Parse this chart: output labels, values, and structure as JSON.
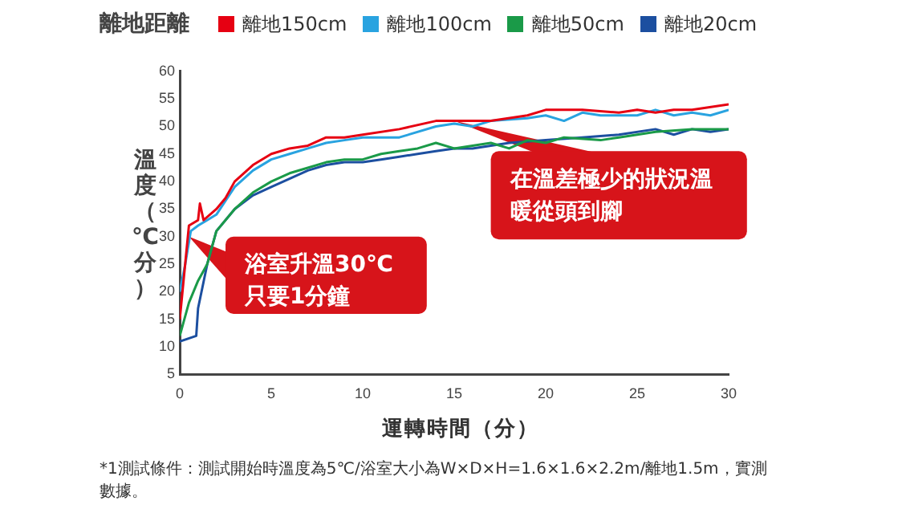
{
  "chart_data": {
    "type": "line",
    "legend_title": "離地距離",
    "legend": "top",
    "xlabel": "運轉時間（分）",
    "ylabel": "溫度（℃分）",
    "grid": false,
    "marker": "none",
    "line_style": "solid",
    "xlim": [
      0,
      30
    ],
    "xticks": [
      0,
      5,
      10,
      15,
      20,
      25,
      30
    ],
    "ylim": [
      5,
      60
    ],
    "yticks": [
      5,
      10,
      15,
      20,
      25,
      30,
      35,
      40,
      45,
      50,
      55,
      60
    ],
    "series": [
      {
        "name": "離地150cm",
        "color": "#e60012",
        "x": [
          0,
          0.5,
          1,
          1.1,
          1.3,
          2,
          2.5,
          3,
          4,
          5,
          6,
          7,
          8,
          9,
          10,
          12,
          14,
          15,
          17,
          19,
          20,
          22,
          24,
          25,
          26,
          27,
          28,
          30
        ],
        "values": [
          15,
          32,
          33,
          36,
          33,
          35,
          37,
          40,
          43,
          45,
          46,
          46.5,
          48,
          48,
          48.5,
          49.5,
          51,
          51,
          51,
          52,
          53,
          53,
          52.5,
          53,
          52.5,
          53,
          53,
          54
        ]
      },
      {
        "name": "離地100cm",
        "color": "#29a3e0",
        "x": [
          0,
          0.3,
          0.6,
          1,
          2,
          3,
          4,
          5,
          6,
          7,
          8,
          9,
          10,
          12,
          14,
          15,
          16,
          17,
          19,
          20,
          21,
          22,
          23,
          25,
          26,
          27,
          28,
          29,
          30
        ],
        "values": [
          20,
          25,
          31,
          32,
          34,
          39,
          42,
          44,
          45,
          46,
          47,
          47.5,
          48,
          48,
          50,
          50.5,
          50,
          51,
          51.5,
          52,
          51,
          52.5,
          52,
          52,
          53,
          52,
          52.5,
          52,
          53
        ]
      },
      {
        "name": "離地50cm",
        "color": "#1a9a48",
        "x": [
          0,
          0.5,
          1,
          1.5,
          2,
          3,
          4,
          5,
          6,
          7,
          8,
          9,
          10,
          11,
          12,
          13,
          14,
          15,
          16,
          17,
          18,
          19,
          20,
          21,
          23,
          24,
          26,
          28,
          30
        ],
        "values": [
          12,
          18,
          22,
          25,
          31,
          35,
          38,
          40,
          41.5,
          42.5,
          43.5,
          44,
          44,
          45,
          45.5,
          46,
          47,
          46,
          46.5,
          47,
          46,
          47.5,
          47,
          48,
          47.5,
          48,
          49,
          49.5,
          49.5
        ]
      },
      {
        "name": "離地20cm",
        "color": "#1c4fa0",
        "x": [
          0,
          0.9,
          1,
          1.5,
          2,
          3,
          4,
          5,
          6,
          7,
          8,
          9,
          10,
          11,
          12,
          13,
          14,
          15,
          16,
          17,
          18,
          20,
          22,
          24,
          26,
          27,
          28,
          29,
          30
        ],
        "values": [
          11,
          12,
          17,
          25,
          31,
          35,
          37.5,
          39,
          40.5,
          42,
          43,
          43.5,
          43.5,
          44,
          44.5,
          45,
          45.5,
          46,
          46,
          46.5,
          47,
          47.5,
          48,
          48.5,
          49.5,
          48.5,
          49.5,
          49,
          49.5
        ]
      }
    ],
    "annotations": [
      "浴室升溫30℃只要1分鐘",
      "在溫差極少的狀況溫暖從頭到腳",
      "*1測試條件：測試開始時溫度為5℃/浴室大小為W×D×H=1.6×1.6×2.2m/離地1.5m，實測數據。"
    ]
  }
}
